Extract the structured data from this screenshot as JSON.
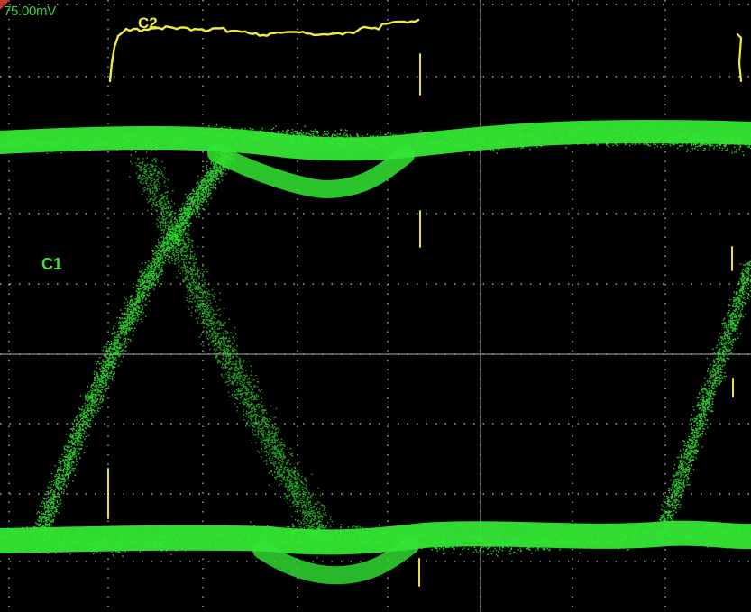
{
  "display": {
    "scale_readout": "75.00mV",
    "channel2_label": "C2",
    "channel1_label": "C1"
  },
  "colors": {
    "background": "#000000",
    "grid": "#c8c8c8",
    "channel1": "#33e633",
    "channel2": "#f4ec3c",
    "trigger": "#c0392b"
  }
}
